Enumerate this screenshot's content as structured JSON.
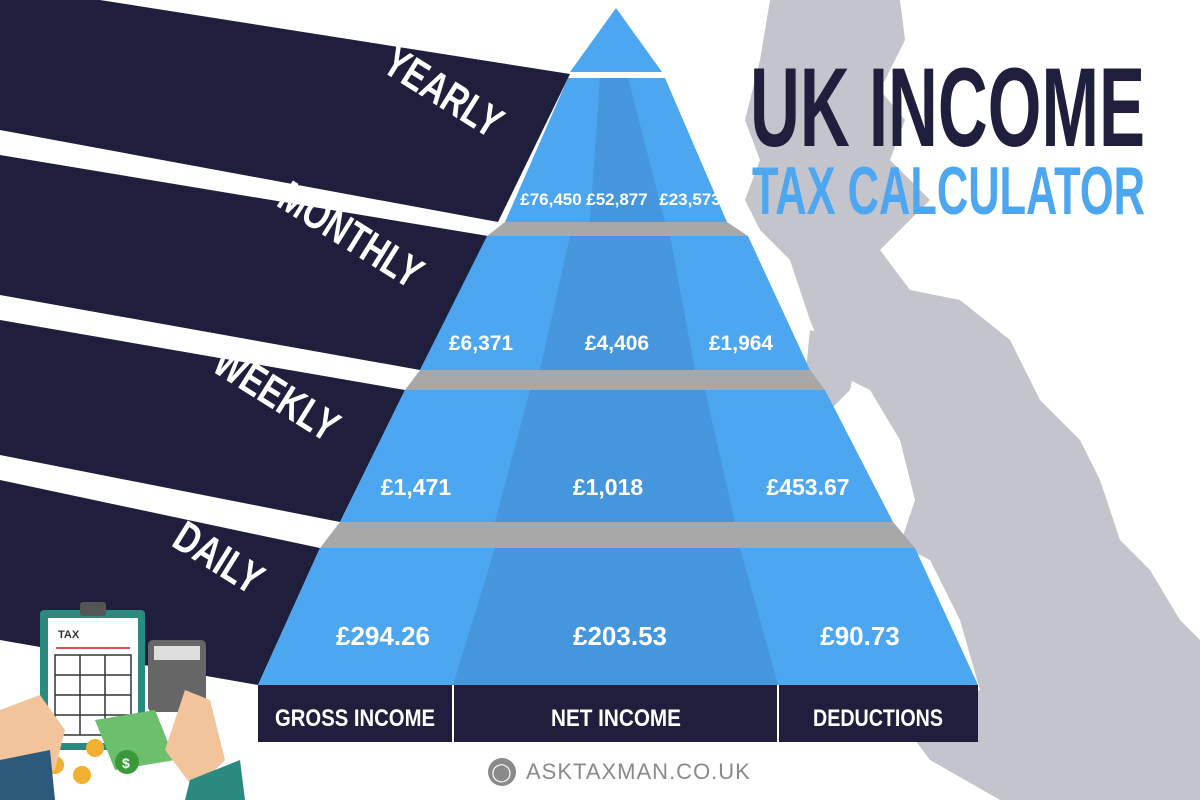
{
  "title": {
    "line1": "UK INCOME",
    "line2": "TAX CALCULATOR"
  },
  "periods": [
    "YEARLY",
    "MONTHLY",
    "WEEKLY",
    "DAILY"
  ],
  "rows": [
    {
      "gross": "£76,450",
      "net": "£52,877",
      "deductions": "£23,573"
    },
    {
      "gross": "£6,371",
      "net": "£4,406",
      "deductions": "£1,964"
    },
    {
      "gross": "£1,471",
      "net": "£1,018",
      "deductions": "£453.67"
    },
    {
      "gross": "£294.26",
      "net": "£203.53",
      "deductions": "£90.73"
    }
  ],
  "columns": [
    "GROSS INCOME",
    "NET INCOME",
    "DEDUCTIONS"
  ],
  "clipboard_label": "TAX",
  "footer": {
    "icon": "globe-icon",
    "site": "ASKTAXMAN.CO.UK"
  },
  "colors": {
    "navy": "#1f1f3d",
    "blue": "#4da6f0",
    "blue_dark": "#4596dc",
    "gray": "#a8a8a8",
    "map": "#c4c4cc"
  }
}
